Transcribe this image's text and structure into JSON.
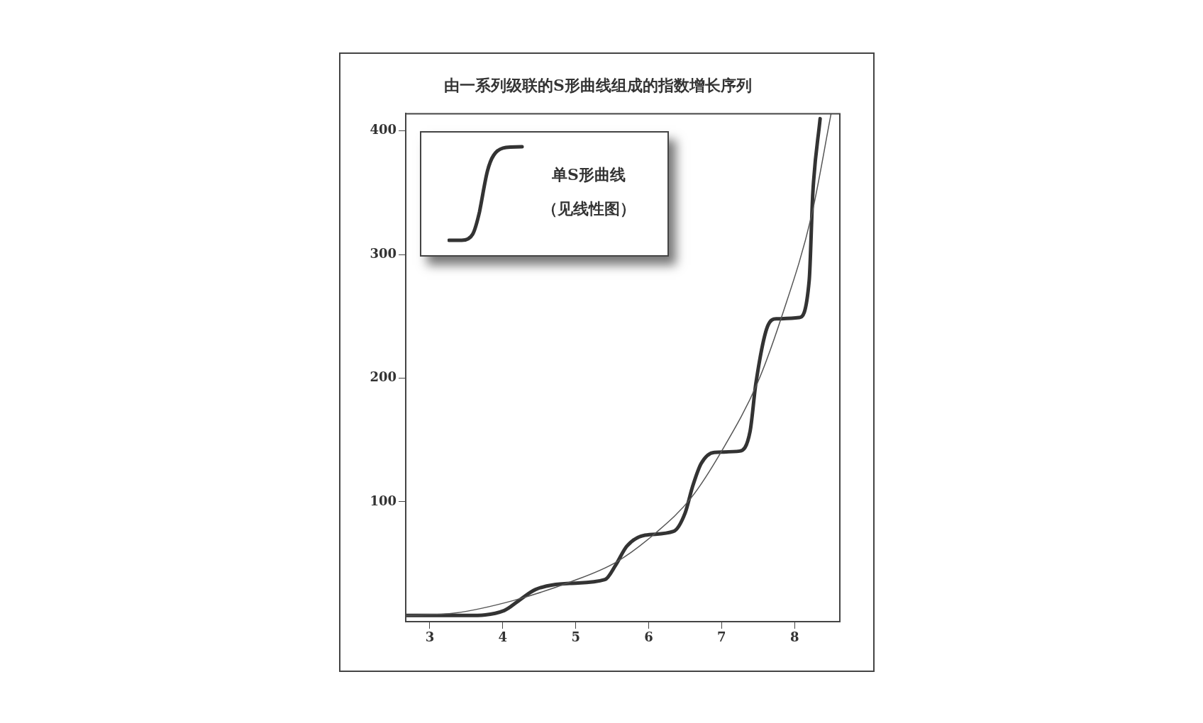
{
  "chart_data": {
    "type": "line",
    "title": "由一系列级联的S形曲线组成的指数增长序列",
    "xlim": [
      2.67,
      8.62
    ],
    "xticks": [
      3,
      4,
      5,
      6,
      7,
      8
    ],
    "ylim": [
      3,
      414
    ],
    "yticks": [
      100,
      200,
      300,
      400
    ],
    "grid": false,
    "legend": false,
    "marker": "none",
    "line_style": "solid",
    "annotations": [
      "单S形曲线",
      "（见线性图）"
    ],
    "series": [
      {
        "color": "#555555",
        "x": [
          2.67,
          3.35,
          4.14,
          4.92,
          5.55,
          6.1,
          6.58,
          7.01,
          7.49,
          7.83,
          8.23,
          8.5
        ],
        "values": [
          8,
          10,
          20,
          35,
          51,
          75,
          103,
          142,
          196,
          251,
          331,
          414
        ]
      },
      {
        "color": "#333333",
        "x": [
          2.67,
          3.5,
          4.02,
          4.22,
          4.45,
          4.92,
          5.4,
          5.55,
          5.7,
          5.95,
          6.34,
          6.5,
          6.6,
          6.72,
          6.9,
          7.25,
          7.39,
          7.47,
          7.63,
          7.75,
          8.06,
          8.2,
          8.25,
          8.35
        ],
        "values": [
          8,
          8,
          12,
          20,
          29,
          34,
          37,
          49,
          64,
          73,
          76,
          91,
          112,
          131,
          140,
          141,
          157,
          196,
          242,
          248,
          249,
          279,
          350,
          410
        ]
      }
    ]
  }
}
